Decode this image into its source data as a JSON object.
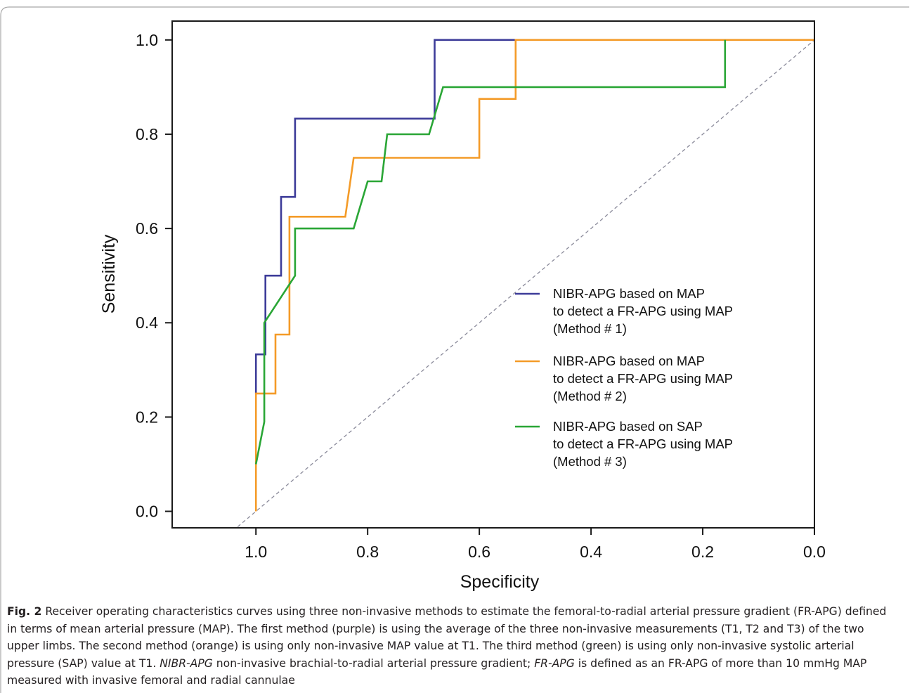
{
  "chart_data": {
    "type": "line",
    "xlabel": "Specificity",
    "ylabel": "Sensitivity",
    "xlim": [
      1.15,
      -0.0
    ],
    "ylim": [
      -0.035,
      1.04
    ],
    "x_reversed": true,
    "x_ticks": [
      "1.0",
      "0.8",
      "0.6",
      "0.4",
      "0.2",
      "0.0"
    ],
    "x_tick_values": [
      1.0,
      0.8,
      0.6,
      0.4,
      0.2,
      0.0
    ],
    "y_ticks": [
      "0.0",
      "0.2",
      "0.4",
      "0.6",
      "0.8",
      "1.0"
    ],
    "y_tick_values": [
      0.0,
      0.2,
      0.4,
      0.6,
      0.8,
      1.0
    ],
    "grid": false,
    "legend_position": "right-center",
    "reference_line": {
      "style": "dashed",
      "color": "#8a8a9a"
    },
    "series": [
      {
        "name": "NIBR-APG based on MAP to detect a FR-APG using MAP (Method # 1)",
        "legend_lines": [
          "NIBR-APG based on MAP",
          "to detect a FR-APG using MAP",
          "(Method # 1)"
        ],
        "color": "#3d3c99",
        "step": true,
        "points": [
          [
            1.0,
            0.25
          ],
          [
            1.0,
            0.333
          ],
          [
            0.983,
            0.333
          ],
          [
            0.983,
            0.5
          ],
          [
            0.955,
            0.5
          ],
          [
            0.955,
            0.667
          ],
          [
            0.93,
            0.667
          ],
          [
            0.93,
            0.833
          ],
          [
            0.68,
            0.833
          ],
          [
            0.68,
            1.0
          ],
          [
            0.535,
            1.0
          ]
        ]
      },
      {
        "name": "NIBR-APG based on MAP to detect a FR-APG using MAP (Method # 2)",
        "legend_lines": [
          "NIBR-APG based on MAP",
          "to detect a FR-APG using MAP",
          "(Method # 2)"
        ],
        "color": "#f49b28",
        "step": true,
        "points": [
          [
            1.0,
            0.0
          ],
          [
            1.0,
            0.25
          ],
          [
            0.965,
            0.25
          ],
          [
            0.965,
            0.375
          ],
          [
            0.94,
            0.375
          ],
          [
            0.94,
            0.625
          ],
          [
            0.84,
            0.625
          ],
          [
            0.825,
            0.75
          ],
          [
            0.6,
            0.75
          ],
          [
            0.6,
            0.875
          ],
          [
            0.535,
            0.875
          ],
          [
            0.535,
            1.0
          ],
          [
            0.0,
            1.0
          ]
        ]
      },
      {
        "name": "NIBR-APG based on SAP to detect a FR-APG using MAP (Method # 3)",
        "legend_lines": [
          "NIBR-APG based on SAP",
          "to detect a FR-APG using MAP",
          "(Method # 3)"
        ],
        "color": "#2aa636",
        "step": false,
        "points": [
          [
            1.0,
            0.1
          ],
          [
            0.985,
            0.19
          ],
          [
            0.985,
            0.4
          ],
          [
            0.93,
            0.5
          ],
          [
            0.93,
            0.6
          ],
          [
            0.825,
            0.6
          ],
          [
            0.8,
            0.7
          ],
          [
            0.775,
            0.7
          ],
          [
            0.765,
            0.8
          ],
          [
            0.69,
            0.8
          ],
          [
            0.665,
            0.9
          ],
          [
            0.16,
            0.9
          ],
          [
            0.16,
            1.0
          ]
        ]
      }
    ]
  },
  "caption": {
    "label": "Fig. 2",
    "text_1": "  Receiver operating characteristics curves using three non-invasive methods to estimate the femoral-to-radial arterial pressure gradient (FR-APG) defined in terms of mean arterial pressure (MAP). The first method (purple) is using the average of the three non-invasive measurements (T1, T2 and T3) of the two upper limbs. The second method (orange) is using only non-invasive MAP value at T1. The third method (green) is using only non-invasive systolic arterial pressure (SAP) value at T1. ",
    "abbr_1": "NIBR-APG",
    "text_2": " non-invasive brachial-to-radial arterial pressure gradient; ",
    "abbr_2": "FR-APG",
    "text_3": " is defined as an FR-APG of more than 10 mmHg MAP measured with invasive femoral and radial cannulae"
  }
}
